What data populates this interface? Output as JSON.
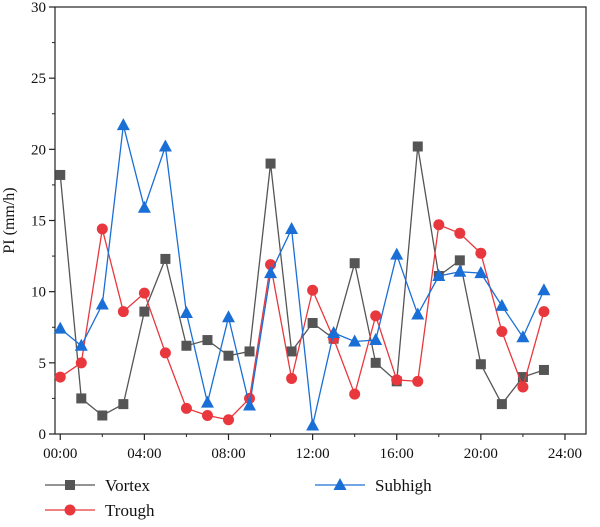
{
  "chart_data": {
    "type": "line",
    "xlabel": "",
    "ylabel": "PI (mm/h)",
    "xlim": [
      -0.25,
      25
    ],
    "ylim": [
      0,
      30
    ],
    "x_ticks": [
      0,
      4,
      8,
      12,
      16,
      20,
      24
    ],
    "x_tick_labels": [
      "00:00",
      "04:00",
      "08:00",
      "12:00",
      "16:00",
      "20:00",
      "24:00"
    ],
    "y_ticks": [
      0,
      5,
      10,
      15,
      20,
      25,
      30
    ],
    "y_tick_labels": [
      "0",
      "5",
      "10",
      "15",
      "20",
      "25",
      "30"
    ],
    "grid": false,
    "legend_position": "bottom",
    "x": [
      0,
      1,
      2,
      3,
      4,
      5,
      6,
      7,
      8,
      9,
      10,
      11,
      12,
      13,
      14,
      15,
      16,
      17,
      18,
      19,
      20,
      21,
      22,
      23
    ],
    "series": [
      {
        "name": "Vortex",
        "color": "#555555",
        "marker": "square",
        "values": [
          18.2,
          2.5,
          1.3,
          2.1,
          8.6,
          12.3,
          6.2,
          6.6,
          5.5,
          5.8,
          19.0,
          5.8,
          7.8,
          6.7,
          12.0,
          5.0,
          3.7,
          20.2,
          11.1,
          12.2,
          4.9,
          2.1,
          4.0,
          4.5
        ]
      },
      {
        "name": "Trough",
        "color": "#e8383d",
        "marker": "circle",
        "values": [
          4.0,
          5.0,
          14.4,
          8.6,
          9.9,
          5.7,
          1.8,
          1.3,
          1.0,
          2.5,
          11.9,
          3.9,
          10.1,
          6.7,
          2.8,
          8.3,
          3.8,
          3.7,
          14.7,
          14.1,
          12.7,
          7.2,
          3.3,
          8.6
        ]
      },
      {
        "name": "Subhigh",
        "color": "#1a6fd6",
        "marker": "triangle",
        "values": [
          7.4,
          6.2,
          9.1,
          21.7,
          15.9,
          20.2,
          8.5,
          2.2,
          8.2,
          2.0,
          11.3,
          14.4,
          0.6,
          7.1,
          6.5,
          6.6,
          12.6,
          8.4,
          11.1,
          11.4,
          11.3,
          9.0,
          6.8,
          10.1
        ]
      }
    ]
  }
}
